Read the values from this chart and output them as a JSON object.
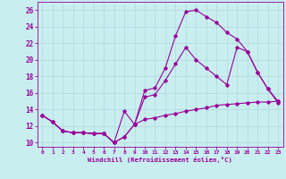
{
  "title": "",
  "xlabel": "Windchill (Refroidissement éolien,°C)",
  "ylabel": "",
  "xlim": [
    -0.5,
    23.5
  ],
  "ylim": [
    9.5,
    27.0
  ],
  "yticks": [
    10,
    12,
    14,
    16,
    18,
    20,
    22,
    24,
    26
  ],
  "xticks": [
    0,
    1,
    2,
    3,
    4,
    5,
    6,
    7,
    8,
    9,
    10,
    11,
    12,
    13,
    14,
    15,
    16,
    17,
    18,
    19,
    20,
    21,
    22,
    23
  ],
  "background_color": "#c8eef0",
  "grid_color": "#b0d8da",
  "line_color": "#990099",
  "line1_y": [
    13.3,
    12.5,
    11.4,
    11.2,
    11.2,
    11.1,
    11.1,
    10.0,
    10.7,
    12.2,
    16.3,
    16.6,
    19.0,
    22.9,
    25.8,
    26.0,
    25.2,
    24.5,
    23.3,
    22.5,
    21.0,
    18.5,
    16.5,
    14.8
  ],
  "line2_y": [
    13.3,
    12.5,
    11.4,
    11.2,
    11.2,
    11.1,
    11.1,
    10.0,
    13.8,
    12.2,
    15.5,
    15.8,
    17.5,
    19.5,
    21.5,
    20.0,
    19.0,
    18.0,
    17.0,
    21.5,
    21.0,
    18.5,
    16.5,
    15.0
  ],
  "line3_y": [
    13.3,
    12.5,
    11.4,
    11.2,
    11.2,
    11.1,
    11.1,
    10.0,
    10.7,
    12.2,
    12.8,
    13.0,
    13.3,
    13.5,
    13.8,
    14.0,
    14.2,
    14.5,
    14.6,
    14.7,
    14.8,
    14.9,
    14.9,
    15.0
  ]
}
